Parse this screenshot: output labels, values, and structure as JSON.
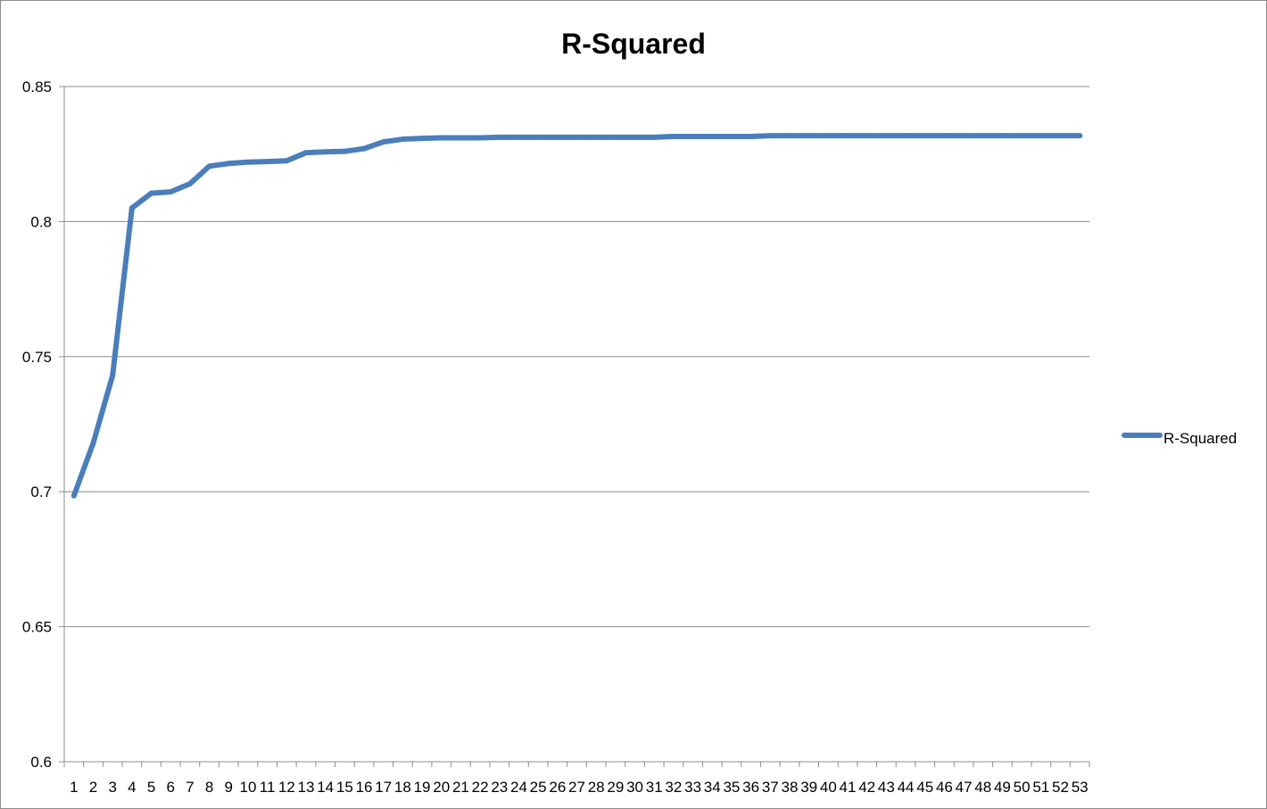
{
  "chart_data": {
    "type": "line",
    "title": "R-Squared",
    "xlabel": "",
    "ylabel": "",
    "ylim": [
      0.6,
      0.85
    ],
    "y_ticks": [
      0.6,
      0.65,
      0.7,
      0.75,
      0.8,
      0.85
    ],
    "y_tick_labels": [
      "0.6",
      "0.65",
      "0.7",
      "0.75",
      "0.8",
      "0.85"
    ],
    "categories": [
      "1",
      "2",
      "3",
      "4",
      "5",
      "6",
      "7",
      "8",
      "9",
      "10",
      "11",
      "12",
      "13",
      "14",
      "15",
      "16",
      "17",
      "18",
      "19",
      "20",
      "21",
      "22",
      "23",
      "24",
      "25",
      "26",
      "27",
      "28",
      "29",
      "30",
      "31",
      "32",
      "33",
      "34",
      "35",
      "36",
      "37",
      "38",
      "39",
      "40",
      "41",
      "42",
      "43",
      "44",
      "45",
      "46",
      "47",
      "48",
      "49",
      "50",
      "51",
      "52",
      "53"
    ],
    "grid": "horizontal",
    "legend_position": "right",
    "series": [
      {
        "name": "R-Squared",
        "color": "#4a7ebb",
        "values": [
          0.6985,
          0.718,
          0.743,
          0.805,
          0.8105,
          0.811,
          0.814,
          0.8205,
          0.8215,
          0.822,
          0.8222,
          0.8225,
          0.8255,
          0.8258,
          0.826,
          0.827,
          0.8295,
          0.8305,
          0.8308,
          0.831,
          0.831,
          0.831,
          0.8312,
          0.8312,
          0.8312,
          0.8312,
          0.8312,
          0.8312,
          0.8312,
          0.8312,
          0.8312,
          0.8315,
          0.8315,
          0.8315,
          0.8315,
          0.8315,
          0.8318,
          0.8318,
          0.8318,
          0.8318,
          0.8318,
          0.8318,
          0.8318,
          0.8318,
          0.8318,
          0.8318,
          0.8318,
          0.8318,
          0.8318,
          0.8318,
          0.8318,
          0.8318,
          0.8318
        ]
      }
    ]
  }
}
